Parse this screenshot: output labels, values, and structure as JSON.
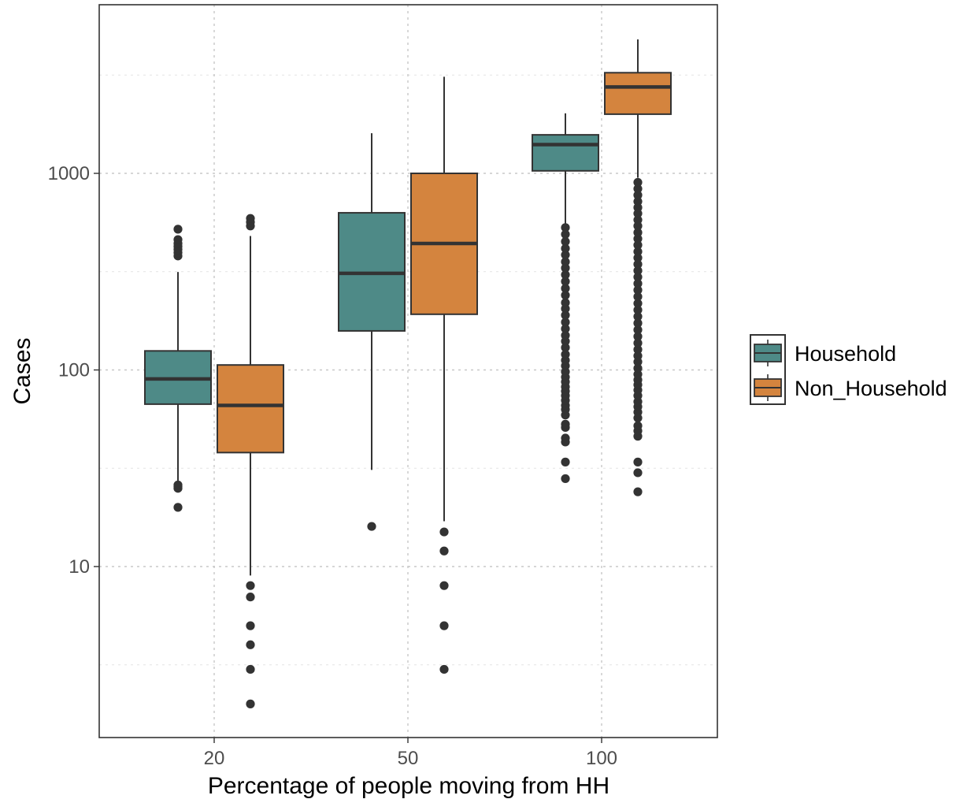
{
  "chart_data": {
    "type": "boxplot",
    "xlabel": "Percentage of people moving from HH",
    "ylabel": "Cases",
    "yscale": "log10",
    "ylim": [
      1.5,
      6400
    ],
    "yticks": [
      {
        "value": 10,
        "label": "10"
      },
      {
        "value": 100,
        "label": "100"
      },
      {
        "value": 1000,
        "label": "1000"
      }
    ],
    "categories": [
      "20",
      "50",
      "100"
    ],
    "grid": true,
    "legend_position": "right",
    "series": [
      {
        "name": "Household",
        "color": "#4e8a87",
        "boxes": [
          {
            "category": "20",
            "whisker_low": 27,
            "q1": 67,
            "median": 90,
            "q3": 125,
            "whisker_high": 315,
            "outliers": [
              20,
              25,
              25.5,
              26,
              380,
              395,
              410,
              425,
              440,
              460,
              520
            ]
          },
          {
            "category": "50",
            "whisker_low": 31,
            "q1": 158,
            "median": 310,
            "q3": 630,
            "whisker_high": 1600,
            "outliers": [
              16
            ]
          },
          {
            "category": "100",
            "whisker_low": 545,
            "q1": 1030,
            "median": 1400,
            "q3": 1570,
            "whisker_high": 2020,
            "outliers": [
              28,
              34,
              43,
              45,
              51,
              53,
              59,
              63,
              66,
              70,
              74,
              78,
              82,
              87,
              92,
              98,
              105,
              112,
              120,
              130,
              140,
              150,
              162,
              175,
              190,
              205,
              220,
              240,
              260,
              282,
              305,
              330,
              355,
              385,
              415,
              450,
              490,
              530
            ]
          }
        ]
      },
      {
        "name": "Non_Household",
        "color": "#d4843e",
        "boxes": [
          {
            "category": "20",
            "whisker_low": 9,
            "q1": 38,
            "median": 66,
            "q3": 106,
            "whisker_high": 480,
            "outliers": [
              2,
              3,
              4,
              5,
              7,
              8,
              540,
              565,
              590
            ]
          },
          {
            "category": "50",
            "whisker_low": 17,
            "q1": 192,
            "median": 440,
            "q3": 1000,
            "whisker_high": 3100,
            "outliers": [
              3,
              5,
              8,
              12,
              15
            ]
          },
          {
            "category": "100",
            "whisker_low": 950,
            "q1": 2000,
            "median": 2750,
            "q3": 3250,
            "whisker_high": 4800,
            "outliers": [
              24,
              30,
              34,
              46,
              49,
              52,
              57,
              61,
              65,
              69,
              74,
              79,
              84,
              89,
              95,
              102,
              110,
              118,
              127,
              137,
              148,
              160,
              173,
              187,
              202,
              218,
              236,
              255,
              275,
              297,
              320,
              345,
              372,
              400,
              432,
              465,
              500,
              540,
              580,
              625,
              670,
              720,
              775,
              835,
              900
            ]
          }
        ]
      }
    ]
  }
}
